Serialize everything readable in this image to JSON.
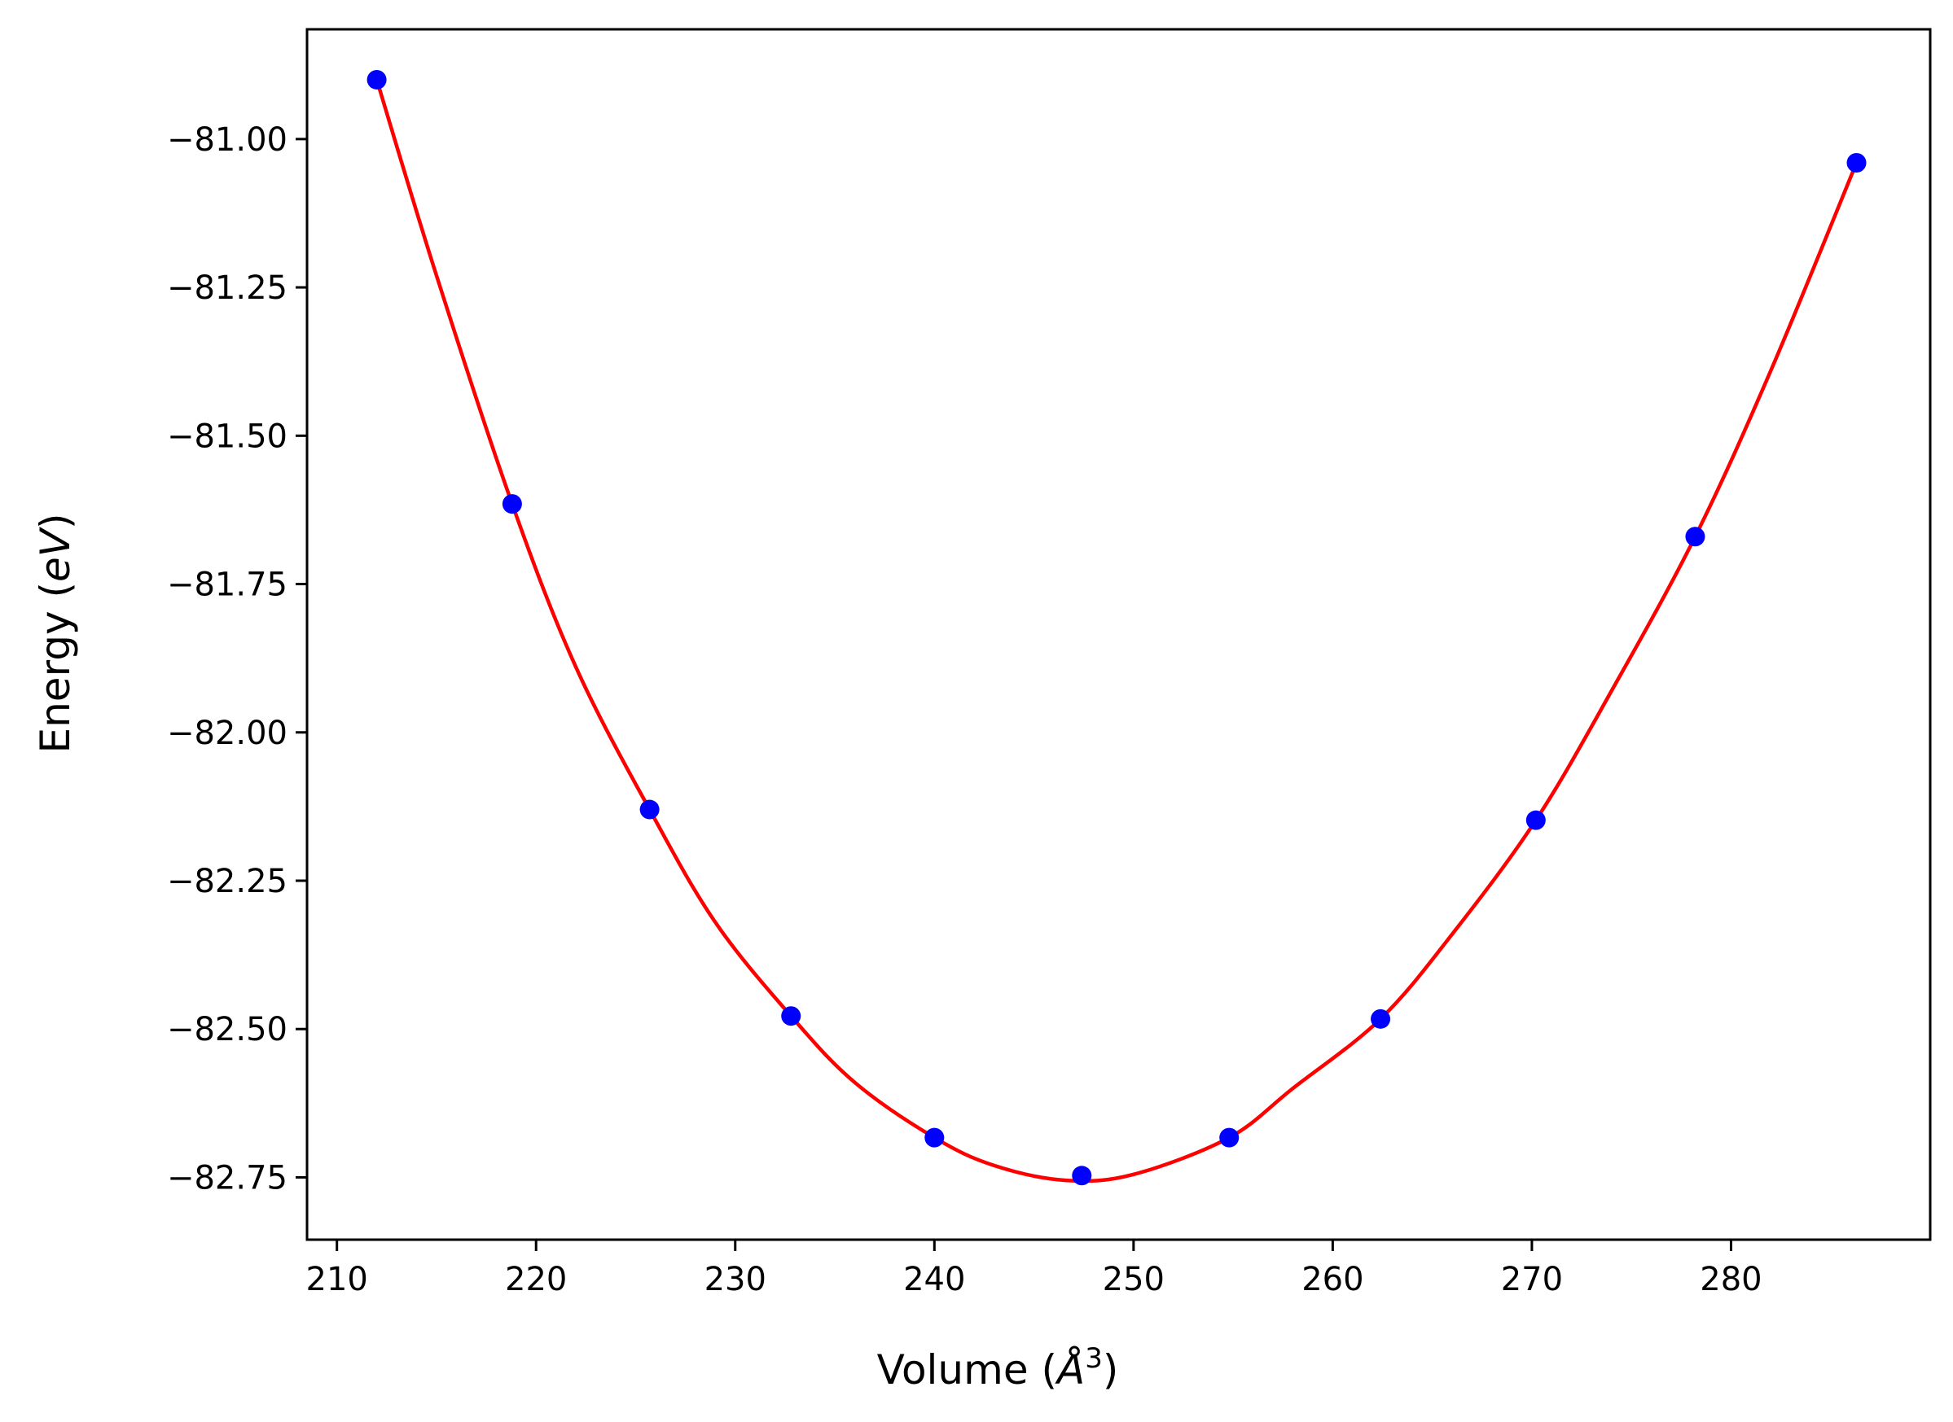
{
  "chart_data": {
    "type": "scatter",
    "title": "",
    "xlabel": {
      "prefix": "Volume (",
      "symbol": "Å",
      "superscript": "3",
      "suffix": ")"
    },
    "ylabel": {
      "prefix": "Energy (",
      "symbol": "eV",
      "suffix": ")"
    },
    "xlim": [
      208.5,
      290
    ],
    "ylim": [
      -82.855,
      -80.815
    ],
    "xticks": [
      210,
      220,
      230,
      240,
      250,
      260,
      270,
      280
    ],
    "xtick_labels": [
      "210",
      "220",
      "230",
      "240",
      "250",
      "260",
      "270",
      "280"
    ],
    "yticks": [
      -81.0,
      -81.25,
      -81.5,
      -81.75,
      -82.0,
      -82.25,
      -82.5,
      -82.75
    ],
    "ytick_labels": [
      "−81.00",
      "−81.25",
      "−81.50",
      "−81.75",
      "−82.00",
      "−82.25",
      "−82.50",
      "−82.75"
    ],
    "grid": false,
    "series": [
      {
        "kind": "points",
        "color": "#0000ff",
        "x": [
          212.0,
          218.8,
          225.7,
          232.8,
          240.0,
          247.4,
          254.8,
          262.4,
          270.2,
          278.2,
          286.3
        ],
        "y": [
          -80.9,
          -81.615,
          -82.13,
          -82.478,
          -82.683,
          -82.747,
          -82.683,
          -82.483,
          -82.148,
          -81.67,
          -81.04
        ]
      },
      {
        "kind": "fit",
        "color": "#ff0000",
        "x": [
          212.0,
          215.0,
          218.8,
          222.0,
          225.7,
          229.0,
          232.8,
          236.0,
          240.0,
          243.0,
          246.6,
          250.0,
          254.8,
          258.0,
          262.4,
          266.0,
          270.2,
          274.0,
          278.2,
          282.0,
          286.3
        ],
        "y": [
          -80.9,
          -81.23,
          -81.615,
          -81.89,
          -82.13,
          -82.32,
          -82.478,
          -82.59,
          -82.683,
          -82.73,
          -82.755,
          -82.745,
          -82.683,
          -82.6,
          -82.483,
          -82.34,
          -82.148,
          -81.93,
          -81.67,
          -81.39,
          -81.04
        ]
      }
    ]
  }
}
